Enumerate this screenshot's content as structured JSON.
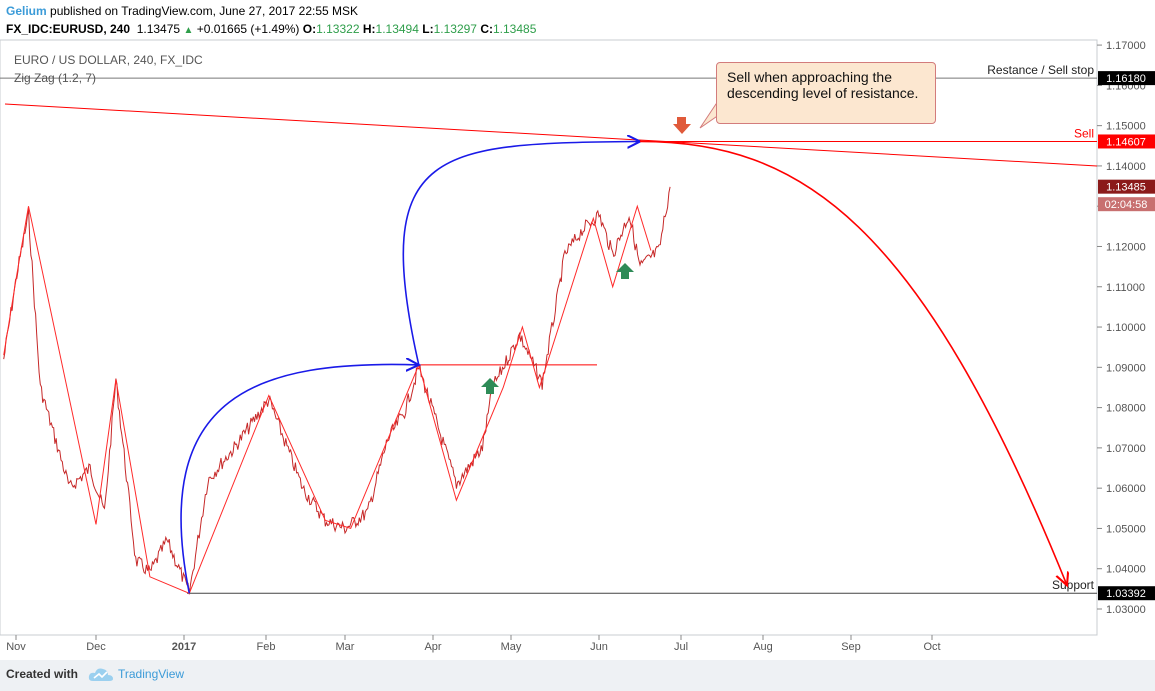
{
  "header": {
    "author": "Gelium",
    "published": "published on TradingView.com, June 27, 2017 22:55 MSK",
    "symbol": "FX_IDC:EURUSD, 240",
    "last": "1.13475",
    "change": "+0.01665 (+1.49%)",
    "o_label": "O:",
    "o_val": "1.13322",
    "h_label": "H:",
    "h_val": "1.13494",
    "l_label": "L:",
    "l_val": "1.13297",
    "c_label": "C:",
    "c_val": "1.13485"
  },
  "overlay": {
    "title": "EURO / US DOLLAR, 240, FX_IDC",
    "indicator": "Zig Zag (1.2, 7)"
  },
  "callout": {
    "text": "Sell when approaching the descending level of resistance."
  },
  "footer": {
    "created": "Created with",
    "brand": "TradingView"
  },
  "colors": {
    "price": "#c62828",
    "zigzag": "#ff2a2a",
    "projection": "#1a1ae8",
    "resistance": "#777777",
    "sell": "#ff0000",
    "author": "#3b9bd8",
    "arrow_green": "#2e8b57",
    "arrow_red": "#e05a3a"
  },
  "chart_data": {
    "type": "line",
    "series_name": "EURUSD",
    "ylim": [
      1.025,
      1.172
    ],
    "y_ticks": [
      "1.03000",
      "1.04000",
      "1.05000",
      "1.06000",
      "1.07000",
      "1.08000",
      "1.09000",
      "1.10000",
      "1.11000",
      "1.12000",
      "1.13000",
      "1.14000",
      "1.15000",
      "1.16000",
      "1.17000"
    ],
    "x_ticks": [
      "Nov",
      "Dec",
      "2017",
      "Feb",
      "Mar",
      "Apr",
      "May",
      "Jun",
      "Jul",
      "Aug",
      "Sep",
      "Oct"
    ],
    "price_points": [
      [
        "Oct 26",
        1.092
      ],
      [
        "Nov 4",
        1.113
      ],
      [
        "Nov 8",
        1.128
      ],
      [
        "Nov 12",
        1.085
      ],
      [
        "Nov 22",
        1.06
      ],
      [
        "Nov 29",
        1.065
      ],
      [
        "Dec 4",
        1.054
      ],
      [
        "Dec 8",
        1.087
      ],
      [
        "Dec 15",
        1.042
      ],
      [
        "Dec 20",
        1.039
      ],
      [
        "Dec 26",
        1.047
      ],
      [
        "Jan 3",
        1.034
      ],
      [
        "Jan 10",
        1.062
      ],
      [
        "Jan 20",
        1.07
      ],
      [
        "Feb 2",
        1.082
      ],
      [
        "Feb 14",
        1.06
      ],
      [
        "Feb 22",
        1.052
      ],
      [
        "Mar 1",
        1.05
      ],
      [
        "Mar 9",
        1.054
      ],
      [
        "Mar 16",
        1.072
      ],
      [
        "Mar 22",
        1.079
      ],
      [
        "Mar 27",
        1.09
      ],
      [
        "Apr 10",
        1.061
      ],
      [
        "Apr 20",
        1.07
      ],
      [
        "Apr 24",
        1.085
      ],
      [
        "May 4",
        1.098
      ],
      [
        "May 12",
        1.086
      ],
      [
        "May 20",
        1.118
      ],
      [
        "May 26",
        1.124
      ],
      [
        "Jun 1",
        1.128
      ],
      [
        "Jun 6",
        1.118
      ],
      [
        "Jun 12",
        1.128
      ],
      [
        "Jun 16",
        1.115
      ],
      [
        "Jun 23",
        1.119
      ],
      [
        "Jun 27",
        1.1348
      ]
    ],
    "zigzag": [
      [
        "Oct 26",
        1.093
      ],
      [
        "Nov 4",
        1.113
      ],
      [
        "Nov 8",
        1.13
      ],
      [
        "Dec 1",
        1.051
      ],
      [
        "Dec 8",
        1.087
      ],
      [
        "Dec 20",
        1.038
      ],
      [
        "Jan 3",
        1.0339
      ],
      [
        "Feb 2",
        1.083
      ],
      [
        "Feb 22",
        1.052
      ],
      [
        "Mar 3",
        1.05
      ],
      [
        "Mar 27",
        1.0906
      ],
      [
        "Apr 10",
        1.057
      ],
      [
        "Apr 28",
        1.085
      ],
      [
        "May 5",
        1.1
      ],
      [
        "May 11",
        1.085
      ],
      [
        "May 30",
        1.127
      ],
      [
        "Jun 6",
        1.11
      ],
      [
        "Jun 15",
        1.13
      ],
      [
        "Jun 20",
        1.119
      ]
    ],
    "levels": [
      {
        "label": "Restance / Sell stop",
        "price": "1.16180",
        "value": 1.1618
      },
      {
        "label": "Sell",
        "price": "1.14607",
        "value": 1.14607
      },
      {
        "label": "Support",
        "price": "1.03392",
        "value": 1.03392
      },
      {
        "label": "",
        "price": "1.13485",
        "value": 1.13485
      },
      {
        "label": "",
        "price": "02:04:58",
        "value": 1.1305
      }
    ],
    "trendline": [
      [
        "Oct 26",
        1.155
      ],
      [
        "Oct 20 next",
        1.14
      ]
    ],
    "mid_level": 1.0906,
    "projections": [
      {
        "type": "curve",
        "from": [
          "Jan 3",
          1.0339
        ],
        "to": [
          "Mar 27",
          1.0906
        ]
      },
      {
        "type": "curve",
        "from": [
          "Mar 27",
          1.0906
        ],
        "to": [
          "Jun 16",
          1.14607
        ]
      },
      {
        "type": "curve",
        "from": [
          "Jun 16",
          1.14607
        ],
        "to": [
          "Oct 20",
          1.0339
        ]
      }
    ],
    "grid": false,
    "legend": "none"
  }
}
